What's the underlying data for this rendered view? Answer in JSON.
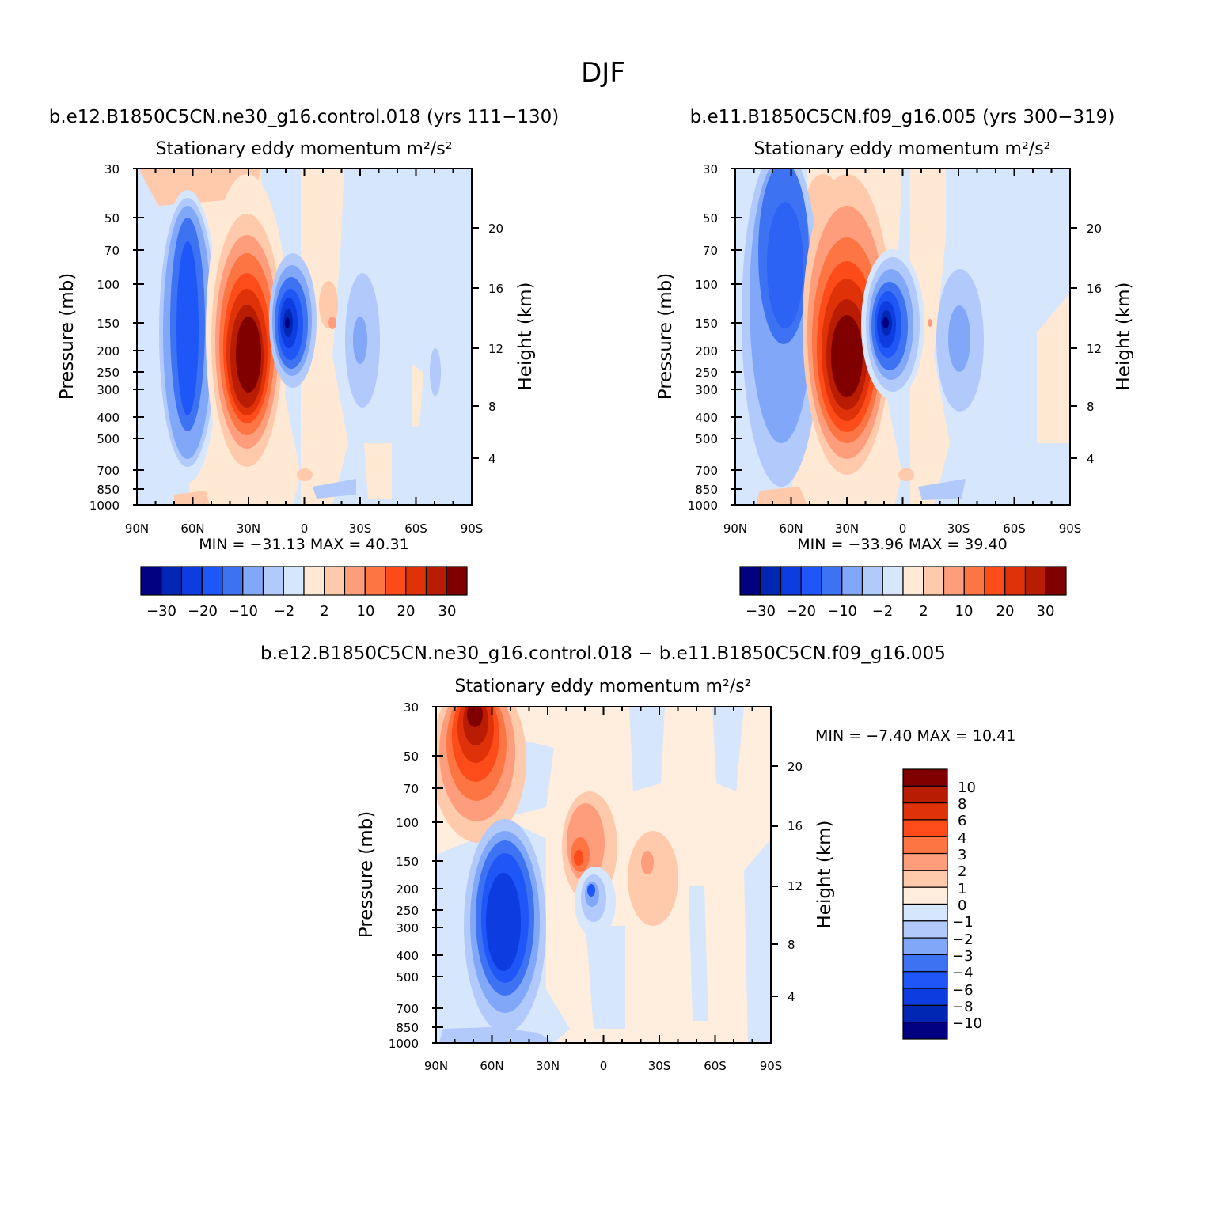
{
  "title": "DJF",
  "colors": {
    "main_scale": [
      "#000080",
      "#0026b4",
      "#0d3de0",
      "#1f56f7",
      "#3d73f2",
      "#80a7f8",
      "#b1c9fb",
      "#d6e6fd",
      "#ffe8d4",
      "#ffc9ac",
      "#fd9d7b",
      "#fd7543",
      "#fd4b19",
      "#e03209",
      "#b81c03",
      "#800000"
    ],
    "diff_scale": [
      "#000080",
      "#0026b4",
      "#0d3de0",
      "#1f56f7",
      "#3d73f2",
      "#80a7f8",
      "#b1c9fb",
      "#d6e6fd",
      "#ffeedd",
      "#ffc9ac",
      "#fd9d7b",
      "#fd7543",
      "#fd4b19",
      "#e03209",
      "#b81c03",
      "#800000"
    ]
  },
  "chart_data": [
    {
      "type": "contour",
      "title": "b.e12.B1850C5CN.ne30_g16.control.018 (yrs 111-130)",
      "variable": "Stationary eddy momentum",
      "units": "m²/s²",
      "xlabel": "",
      "ylabel": "Pressure (mb)",
      "ylabel_right": "Height (km)",
      "x_ticks": [
        "90N",
        "60N",
        "30N",
        "0",
        "30S",
        "60S",
        "90S"
      ],
      "y_ticks": [
        30,
        50,
        70,
        100,
        150,
        200,
        250,
        300,
        400,
        500,
        700,
        850,
        1000
      ],
      "right_ticks": [
        20,
        16,
        12,
        8,
        4
      ],
      "stats": {
        "min_label": "MIN =",
        "min": "-31.13",
        "max_label": "MAX =",
        "max": "40.31"
      },
      "colorbar_labels": [
        "-30",
        "-20",
        "-10",
        "-2",
        "2",
        "10",
        "20",
        "30"
      ],
      "features": [
        {
          "lat": 62,
          "p": 200,
          "value": -22
        },
        {
          "lat": 28,
          "p": 220,
          "value": 40
        },
        {
          "lat": 8,
          "p": 150,
          "value": -31
        },
        {
          "lat": -30,
          "p": 180,
          "value": -8
        },
        {
          "lat": 20,
          "p": 30,
          "value": 5
        }
      ]
    },
    {
      "type": "contour",
      "title": "b.e11.B1850C5CN.f09_g16.005 (yrs 300-319)",
      "variable": "Stationary eddy momentum",
      "units": "m²/s²",
      "xlabel": "",
      "ylabel": "Pressure (mb)",
      "ylabel_right": "Height (km)",
      "x_ticks": [
        "90N",
        "60N",
        "30N",
        "0",
        "30S",
        "60S",
        "90S"
      ],
      "y_ticks": [
        30,
        50,
        70,
        100,
        150,
        200,
        250,
        300,
        400,
        500,
        700,
        850,
        1000
      ],
      "right_ticks": [
        20,
        16,
        12,
        8,
        4
      ],
      "stats": {
        "min_label": "MIN =",
        "min": "-33.96",
        "max_label": "MAX =",
        "max": "39.40"
      },
      "colorbar_labels": [
        "-30",
        "-20",
        "-10",
        "-2",
        "2",
        "10",
        "20",
        "30"
      ],
      "features": [
        {
          "lat": 62,
          "p": 100,
          "value": -24
        },
        {
          "lat": 28,
          "p": 220,
          "value": 39
        },
        {
          "lat": 8,
          "p": 150,
          "value": -34
        },
        {
          "lat": -30,
          "p": 180,
          "value": -8
        }
      ]
    },
    {
      "type": "contour",
      "title": "b.e12.B1850C5CN.ne30_g16.control.018 - b.e11.B1850C5CN.f09_g16.005",
      "variable": "Stationary eddy momentum",
      "units": "m²/s²",
      "xlabel": "",
      "ylabel": "Pressure (mb)",
      "ylabel_right": "Height (km)",
      "x_ticks": [
        "90N",
        "60N",
        "30N",
        "0",
        "30S",
        "60S",
        "90S"
      ],
      "y_ticks": [
        30,
        50,
        70,
        100,
        150,
        200,
        250,
        300,
        400,
        500,
        700,
        850,
        1000
      ],
      "right_ticks": [
        20,
        16,
        12,
        8,
        4
      ],
      "stats": {
        "min_label": "MIN =",
        "min": "-7.40",
        "max_label": "MAX =",
        "max": "10.41"
      },
      "colorbar_labels": [
        "10",
        "8",
        "6",
        "4",
        "3",
        "2",
        "1",
        "0",
        "-1",
        "-2",
        "-3",
        "-4",
        "-6",
        "-8",
        "-10"
      ],
      "features": [
        {
          "lat": 68,
          "p": 35,
          "value": 10
        },
        {
          "lat": 50,
          "p": 250,
          "value": -7
        },
        {
          "lat": 14,
          "p": 150,
          "value": 5
        },
        {
          "lat": 6,
          "p": 200,
          "value": -6
        },
        {
          "lat": -25,
          "p": 150,
          "value": 3
        }
      ]
    }
  ]
}
